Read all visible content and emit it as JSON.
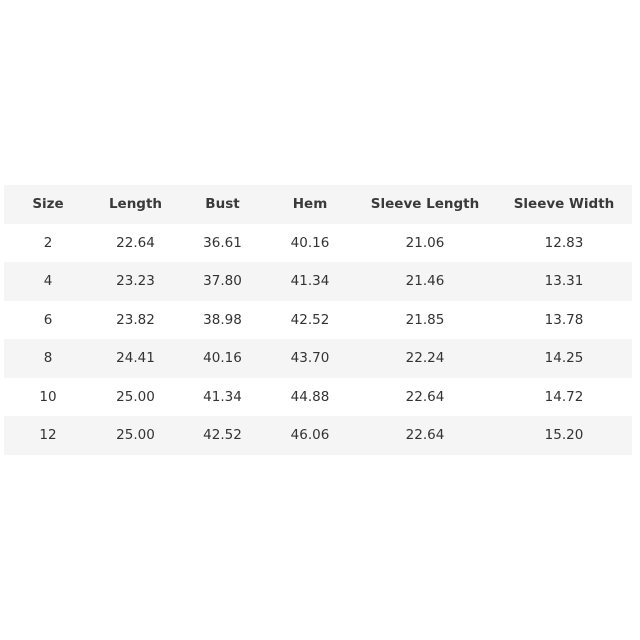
{
  "table": {
    "headers": [
      "Size",
      "Length",
      "Bust",
      "Hem",
      "Sleeve Length",
      "Sleeve Width"
    ],
    "rows": [
      [
        "2",
        "22.64",
        "36.61",
        "40.16",
        "21.06",
        "12.83"
      ],
      [
        "4",
        "23.23",
        "37.80",
        "41.34",
        "21.46",
        "13.31"
      ],
      [
        "6",
        "23.82",
        "38.98",
        "42.52",
        "21.85",
        "13.78"
      ],
      [
        "8",
        "24.41",
        "40.16",
        "43.70",
        "22.24",
        "14.25"
      ],
      [
        "10",
        "25.00",
        "41.34",
        "44.88",
        "22.64",
        "14.72"
      ],
      [
        "12",
        "25.00",
        "42.52",
        "46.06",
        "22.64",
        "15.20"
      ]
    ],
    "stripe_color": "#f5f5f5"
  }
}
